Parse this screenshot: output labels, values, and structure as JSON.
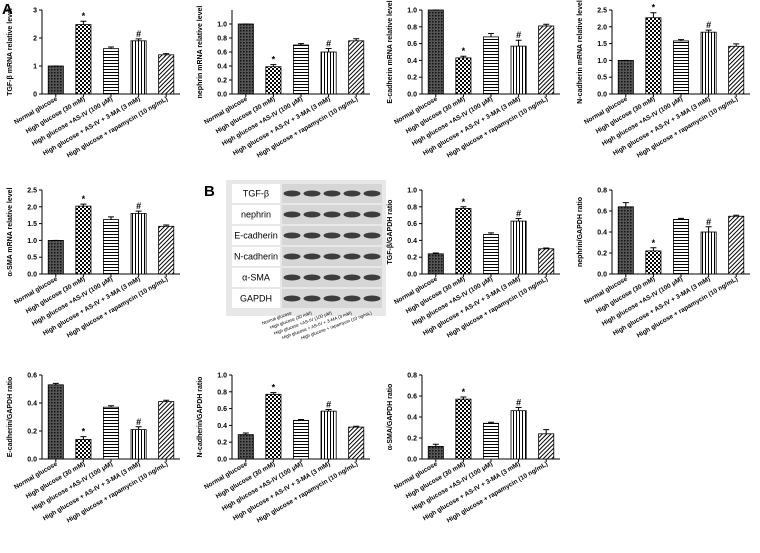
{
  "panel_labels": [
    "A",
    "B"
  ],
  "blot": {
    "rows": [
      "TGF-β",
      "nephrin",
      "E-cadherin",
      "N-cadherin",
      "α-SMA",
      "GAPDH"
    ],
    "lanes": [
      "Normal glucose",
      "High glucose (30 mM)",
      "High glucose +AS-IV (100 μM)",
      "High glucose + AS-IV + 3-MA (3 mM)",
      "High glucose + rapamycin (10 ng/mL)"
    ]
  },
  "chart_data": [
    {
      "type": "bar",
      "y_label": "TGF-β mRNA relative level",
      "categories": [
        "Normal glucose",
        "High glucose (30 mM)",
        "High glucose +AS-IV (100 μM)",
        "High glucose + AS-IV + 3-MA (3 mM)",
        "High glucose + rapamycin (10 ng/mL)"
      ],
      "values": [
        1,
        2.48,
        1.62,
        1.9,
        1.4
      ],
      "errors": [
        0,
        0.12,
        0.06,
        0.07,
        0.04
      ],
      "annotations": [
        null,
        "*",
        null,
        "#",
        null
      ],
      "ylim": [
        0,
        3
      ],
      "yticks": [
        0,
        1,
        2,
        3
      ]
    },
    {
      "type": "bar",
      "y_label": "nephrin mRNA relative level",
      "categories": [
        "Normal glucose",
        "High glucose (30 mM)",
        "High glucose +AS-IV (100 μM)",
        "High glucose + AS-IV + 3-MA (3 mM)",
        "High glucose + rapamycin (10 ng/mL)"
      ],
      "values": [
        1,
        0.39,
        0.7,
        0.6,
        0.76
      ],
      "errors": [
        0,
        0.03,
        0.02,
        0.05,
        0.03
      ],
      "annotations": [
        null,
        "*",
        null,
        "#",
        null
      ],
      "ylim": [
        0,
        1.2
      ],
      "yticks": [
        {
          "value": 0,
          "label": "0.0"
        },
        0.2,
        0.4,
        0.6,
        0.8,
        {
          "value": 1,
          "label": "1.0"
        }
      ]
    },
    {
      "type": "bar",
      "y_label": "E-cadherin mRNA relative level",
      "categories": [
        "Normal glucose",
        "High glucose (30 mM)",
        "High glucose +AS-IV (100 μM)",
        "High glucose + AS-IV + 3-MA (3 mM)",
        "High glucose + rapamycin (10 ng/mL)"
      ],
      "values": [
        1,
        0.43,
        0.68,
        0.57,
        0.81
      ],
      "errors": [
        0,
        0.02,
        0.04,
        0.07,
        0.02
      ],
      "annotations": [
        null,
        "*",
        null,
        "#",
        null
      ],
      "ylim": [
        0,
        1
      ],
      "yticks": [
        {
          "value": 0,
          "label": "0.0"
        },
        0.2,
        0.4,
        0.6,
        0.8,
        {
          "value": 1,
          "label": "1.0"
        }
      ]
    },
    {
      "type": "bar",
      "y_label": "N-cadherin mRNA relative level",
      "categories": [
        "Normal glucose",
        "High glucose (30 mM)",
        "High glucose +AS-IV (100 μM)",
        "High glucose + AS-IV + 3-MA (3 mM)",
        "High glucose + rapamycin (10 ng/mL)"
      ],
      "values": [
        1,
        2.27,
        1.58,
        1.84,
        1.42
      ],
      "errors": [
        0,
        0.15,
        0.04,
        0.06,
        0.07
      ],
      "annotations": [
        null,
        "*",
        null,
        "#",
        null
      ],
      "ylim": [
        0,
        2.5
      ],
      "yticks": [
        {
          "value": 0,
          "label": "0.0"
        },
        0.5,
        {
          "value": 1,
          "label": "1.0"
        },
        1.5,
        {
          "value": 2,
          "label": "2.0"
        },
        2.5
      ]
    },
    {
      "type": "bar",
      "y_label": "α-SMA mRNA relative level",
      "categories": [
        "Normal glucose",
        "High glucose (30 mM)",
        "High glucose +AS-IV (100 μM)",
        "High glucose + AS-IV + 3-MA (3 mM)",
        "High glucose + rapamycin (10 ng/mL)"
      ],
      "values": [
        1,
        2.02,
        1.62,
        1.8,
        1.42
      ],
      "errors": [
        0,
        0.06,
        0.08,
        0.07,
        0.04
      ],
      "annotations": [
        null,
        "*",
        null,
        "#",
        null
      ],
      "ylim": [
        0,
        2.5
      ],
      "yticks": [
        {
          "value": 0,
          "label": "0.0"
        },
        0.5,
        {
          "value": 1,
          "label": "1.0"
        },
        1.5,
        {
          "value": 2,
          "label": "2.0"
        },
        2.5
      ]
    },
    {
      "type": "bar",
      "y_label": "TGF-β/GAPDH ratio",
      "categories": [
        "Normal glucose",
        "High glucose (30 mM)",
        "High glucose +AS-IV (100 μM)",
        "High glucose + AS-IV + 3-MA (3 mM)",
        "High glucose + rapamycin (10 ng/mL)"
      ],
      "values": [
        0.24,
        0.78,
        0.47,
        0.63,
        0.3
      ],
      "errors": [
        0.01,
        0.02,
        0.02,
        0.03,
        0.01
      ],
      "annotations": [
        null,
        "*",
        null,
        "#",
        null
      ],
      "ylim": [
        0,
        1
      ],
      "yticks": [
        {
          "value": 0,
          "label": "0.0"
        },
        0.2,
        0.4,
        0.6,
        0.8,
        {
          "value": 1,
          "label": "1.0"
        }
      ]
    },
    {
      "type": "bar",
      "y_label": "nephrin/GAPDH ratio",
      "categories": [
        "Normal glucose",
        "High glucose (30 mM)",
        "High glucose +AS-IV (100 μM)",
        "High glucose + AS-IV + 3-MA (3 mM)",
        "High glucose + rapamycin (10 ng/mL)"
      ],
      "values": [
        0.64,
        0.22,
        0.52,
        0.4,
        0.55
      ],
      "errors": [
        0.04,
        0.03,
        0.01,
        0.05,
        0.01
      ],
      "annotations": [
        null,
        "*",
        null,
        "#",
        null
      ],
      "ylim": [
        0,
        0.8
      ],
      "yticks": [
        {
          "value": 0,
          "label": "0.0"
        },
        0.2,
        0.4,
        0.6,
        0.8
      ]
    },
    {
      "type": "bar",
      "y_label": "E-cadherin/GAPDH ratio",
      "categories": [
        "Normal glucose",
        "High glucose (30 mM)",
        "High glucose +AS-IV (100 μM)",
        "High glucose + AS-IV + 3-MA (3 mM)",
        "High glucose + rapamycin (10 ng/mL)"
      ],
      "values": [
        0.53,
        0.14,
        0.37,
        0.21,
        0.41
      ],
      "errors": [
        0.01,
        0.02,
        0.01,
        0.02,
        0.01
      ],
      "annotations": [
        null,
        "*",
        null,
        "#",
        null
      ],
      "ylim": [
        0,
        0.6
      ],
      "yticks": [
        {
          "value": 0,
          "label": "0.0"
        },
        0.2,
        0.4,
        0.6
      ]
    },
    {
      "type": "bar",
      "y_label": "N-cadherin/GAPDH ratio",
      "categories": [
        "Normal glucose",
        "High glucose (30 mM)",
        "High glucose +AS-IV (100 μM)",
        "High glucose + AS-IV + 3-MA (3 mM)",
        "High glucose + rapamycin (10 ng/mL)"
      ],
      "values": [
        0.29,
        0.77,
        0.46,
        0.57,
        0.38
      ],
      "errors": [
        0.02,
        0.02,
        0.01,
        0.02,
        0.01
      ],
      "annotations": [
        null,
        "*",
        null,
        "#",
        null
      ],
      "ylim": [
        0,
        1
      ],
      "yticks": [
        {
          "value": 0,
          "label": "0.0"
        },
        0.2,
        0.4,
        0.6,
        0.8,
        {
          "value": 1,
          "label": "1.0"
        }
      ]
    },
    {
      "type": "bar",
      "y_label": "α-SMA/GAPDH ratio",
      "categories": [
        "Normal glucose",
        "High glucose (30 mM)",
        "High glucose +AS-IV (100 μM)",
        "High glucose + AS-IV + 3-MA (3 mM)",
        "High glucose + rapamycin (10 ng/mL)"
      ],
      "values": [
        0.12,
        0.57,
        0.34,
        0.46,
        0.24
      ],
      "errors": [
        0.02,
        0.02,
        0.01,
        0.03,
        0.04
      ],
      "annotations": [
        null,
        "*",
        null,
        "#",
        null
      ],
      "ylim": [
        0,
        0.8
      ],
      "yticks": [
        {
          "value": 0,
          "label": "0.0"
        },
        0.2,
        0.4,
        0.6,
        0.8
      ]
    }
  ]
}
